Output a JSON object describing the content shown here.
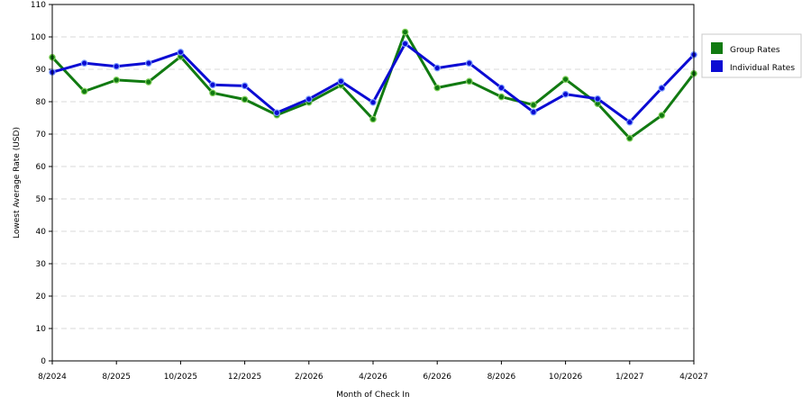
{
  "chart_data": {
    "type": "line",
    "xlabel": "Month of Check In",
    "ylabel": "Lowest Average Rate (USD)",
    "ylim": [
      0,
      110
    ],
    "yticks": [
      0,
      10,
      20,
      30,
      40,
      50,
      60,
      70,
      80,
      90,
      100,
      110
    ],
    "x_tick_labels": [
      "8/2024",
      "8/2025",
      "10/2025",
      "12/2025",
      "2/2026",
      "4/2026",
      "6/2026",
      "8/2026",
      "10/2026",
      "1/2027",
      "4/2027"
    ],
    "x_tick_positions": [
      0,
      2,
      4,
      6,
      8,
      10,
      12,
      14,
      16,
      18,
      20
    ],
    "grid": true,
    "legend_position": "top-right",
    "series": [
      {
        "name": "Group Rates",
        "color": "#117a11",
        "values": [
          93.7,
          83.2,
          86.7,
          86.1,
          93.9,
          82.7,
          80.7,
          75.9,
          79.8,
          85.1,
          74.6,
          101.5,
          84.3,
          86.3,
          81.5,
          79.0,
          86.9,
          79.4,
          68.7,
          75.8,
          88.7
        ]
      },
      {
        "name": "Individual Rates",
        "color": "#0b0bd3",
        "values": [
          89.1,
          91.9,
          90.9,
          91.9,
          95.3,
          85.2,
          84.9,
          76.6,
          80.8,
          86.3,
          79.8,
          97.9,
          90.4,
          91.9,
          84.3,
          76.8,
          82.3,
          80.9,
          73.7,
          84.2,
          94.5
        ]
      }
    ]
  }
}
